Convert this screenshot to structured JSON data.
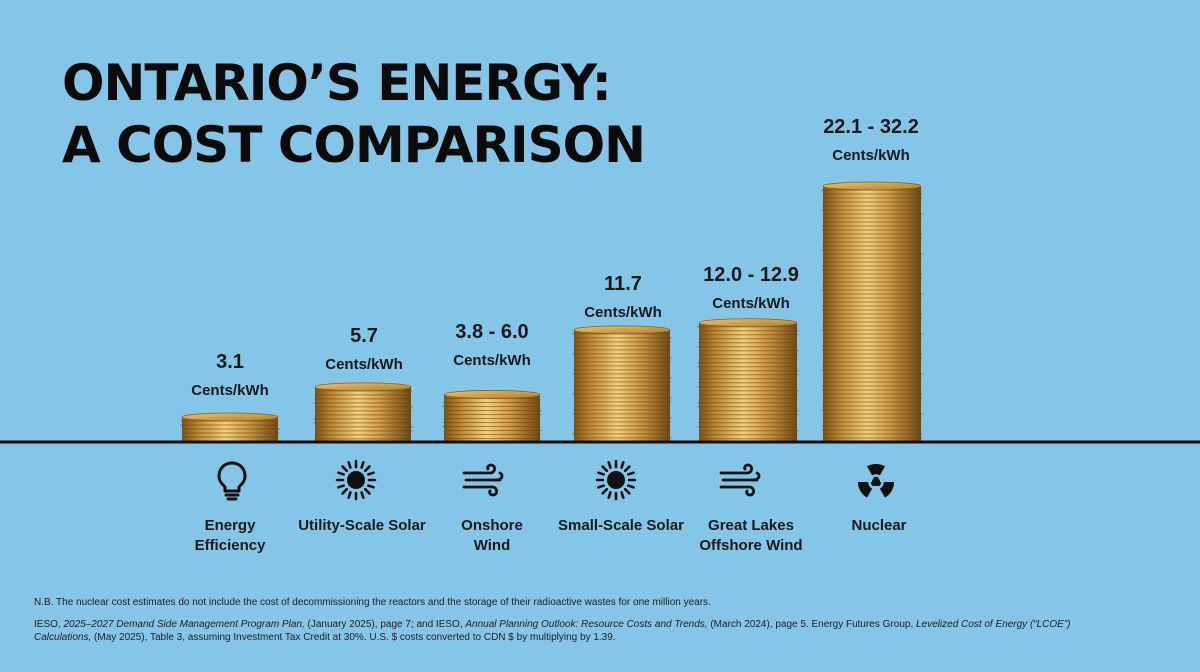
{
  "title_line1": "ONTARIO’S ENERGY:",
  "title_line2": "A COST COMPARISON",
  "chart_data": {
    "type": "bar",
    "categories": [
      "Energy Efficiency",
      "Utility-Scale Solar",
      "Onshore Wind",
      "Small-Scale Solar",
      "Great Lakes Offshore Wind",
      "Nuclear"
    ],
    "value_labels": [
      "3.1",
      "5.7",
      "3.8 - 6.0",
      "11.7",
      "12.0 - 12.9",
      "22.1 - 32.2"
    ],
    "unit": "Cents/kWh",
    "values": [
      3.1,
      5.7,
      4.9,
      11.7,
      12.45,
      27.15
    ],
    "ranges": [
      null,
      null,
      [
        3.8,
        6.0
      ],
      null,
      [
        12.0,
        12.9
      ],
      [
        22.1,
        32.2
      ]
    ],
    "icons": [
      "lightbulb-icon",
      "sun-icon",
      "wind-icon",
      "sun-icon",
      "wind-icon",
      "radiation-icon"
    ],
    "colors": {
      "background": "#85c5e8",
      "coin": "#c8963e",
      "baseline": "#111111"
    }
  },
  "note": "N.B. The nuclear cost estimates do not include the cost of decommissioning the reactors and the storage of their radioactive wastes for one million years.",
  "source": {
    "p1": "IESO, ",
    "i1": "2025–2027 Demand Side Management Program Plan,",
    "p2": " (January 2025), page 7; and IESO, ",
    "i2": "Annual Planning Outlook: Resource Costs and Trends,",
    "p3": " (March 2024), page 5. Energy Futures Group, ",
    "i3": "Levelized Cost of Energy (“LCOE”) Calculations,",
    "p4": " (May 2025), Table 3, assuming Investment Tax Credit at 30%. U.S. $ costs converted to CDN $ by multiplying by 1.39."
  }
}
